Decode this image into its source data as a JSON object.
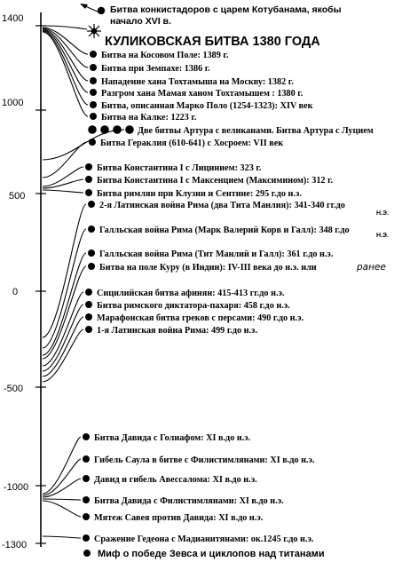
{
  "axis": {
    "ticks": [
      {
        "label": "1400"
      },
      {
        "label": "1000"
      },
      {
        "label": "500"
      },
      {
        "label": "0"
      },
      {
        "label": "-500"
      },
      {
        "label": "-1000"
      },
      {
        "label": "-1300"
      }
    ]
  },
  "header": {
    "conquistadors_line1": "Битва конкистадоров с царем Котубанама, якобы",
    "conquistadors_line2": "начало XVI в.",
    "kulikovo_title": "КУЛИКОВСКАЯ БИТВА 1380 ГОДА"
  },
  "events": [
    {
      "label": "Битва на Косовом Поле: 1389 г."
    },
    {
      "label": "Битва при Земпахе: 1386 г."
    },
    {
      "label": "Нападение хана Тохтамыша на Москву: 1382 г."
    },
    {
      "label": "Разгром хана Мамая ханом Тохтамышем : 1380 г."
    },
    {
      "label": "Битва, описанная Марко Поло (1254-1323): XIV век"
    },
    {
      "label": "Битва на Калке: 1223 г."
    },
    {
      "label": "Две битвы Артура с великанами. Битва Артура с Луцием"
    },
    {
      "label": "Битва Гераклия (610-641) с Хосроем: VII век"
    },
    {
      "label": "Битва Константина I с Лицинием: 323 г."
    },
    {
      "label": "Битва Константина I с Максенцием (Максимином): 312 г."
    },
    {
      "label": "Битва римлян при Клузии и Сентине: 295 г.до н.э."
    },
    {
      "label": "2-я Латинская война Рима (два Тита Манлия): 341-340 гг.до"
    },
    {
      "label": "Галльская война Рима (Марк Валерий Корв и Галл): 348 г.до"
    },
    {
      "label": "Галльская война Рима (Тит Манлий и Галл): 361 г.до н.э."
    },
    {
      "label": "Битва на поле Куру (в Индии): IV-III века до н.э. или"
    },
    {
      "label": "Сицилийская битва афинян: 415-413 гг.до н.э."
    },
    {
      "label": "Битва римского диктатора-пахаря: 458 г.до н.э."
    },
    {
      "label": "Марафонская битва греков с персами: 490 г.до н.э."
    },
    {
      "label": "1-я Латинская война Рима: 499 г.до н.э."
    },
    {
      "label": "Битва Давида с Голиафом: XI в.до н.э."
    },
    {
      "label": "Гибель Саула в битве с Филистимлянами: XI в.до н.э."
    },
    {
      "label": "Давид и гибель Авессалома: XI в.до н.э."
    },
    {
      "label": "Битва Давида с Филистимлянами: XI в.до н.э."
    },
    {
      "label": "Мятеж Савея  против Давида: XI в.до н.э."
    },
    {
      "label": "Сражение Гедеона с Мадианитянами:  ок.1245 г.до н.э."
    }
  ],
  "notes": {
    "ne_1": "Н.Э.",
    "ne_2": "Н.Э.",
    "ranee": "ранее"
  },
  "footer": {
    "myth": "Миф о победе Зевса и циклопов над титанами"
  }
}
